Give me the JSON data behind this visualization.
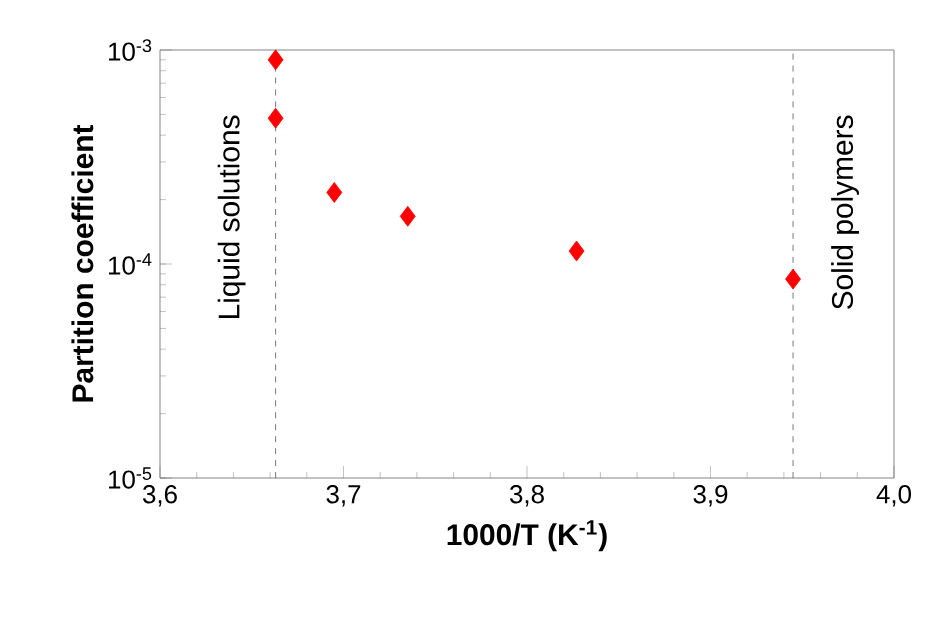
{
  "chart_data": {
    "type": "scatter",
    "xlabel": "1000/T (K$^{-1}$)",
    "ylabel": "Partition coefficient",
    "log": "y",
    "marker": "diamond",
    "grid": false,
    "xlim": [
      3.6,
      4.0
    ],
    "ylim": [
      1e-05,
      0.001
    ],
    "xticks": [
      {
        "value": 3.6,
        "label": "3,6"
      },
      {
        "value": 3.7,
        "label": "3,7"
      },
      {
        "value": 3.8,
        "label": "3,8"
      },
      {
        "value": 3.9,
        "label": "3,9"
      },
      {
        "value": 4.0,
        "label": "4,0"
      }
    ],
    "yticks": [
      {
        "value": 1e-05,
        "label": "10$^{-5}$"
      },
      {
        "value": 0.0001,
        "label": "10$^{-4}$"
      },
      {
        "value": 0.001,
        "label": "10$^{-3}$"
      }
    ],
    "series": [
      {
        "color": "#ff0000",
        "x": [
          3.663,
          3.663,
          3.695,
          3.735,
          3.827,
          3.945
        ],
        "values": [
          0.0009,
          0.00048,
          0.000216,
          0.000167,
          0.000115,
          8.5e-05
        ]
      }
    ],
    "ref_lines": [
      {
        "axis": "x",
        "value": 3.663,
        "label": "Liquid solutions",
        "color": "#555555",
        "line_style": "dashed"
      },
      {
        "axis": "x",
        "value": 3.945,
        "label": "Solid polymers",
        "color": "#555555",
        "line_style": "dashed"
      }
    ]
  }
}
